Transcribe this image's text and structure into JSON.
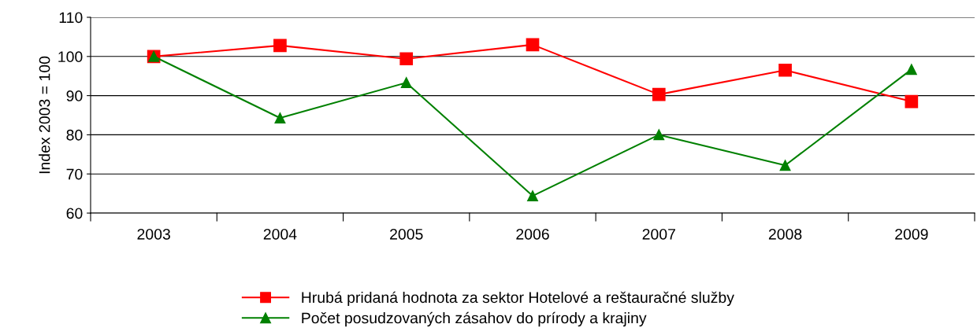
{
  "chart_data": {
    "type": "line",
    "ylabel": "Index 2003 = 100",
    "categories": [
      "2003",
      "2004",
      "2005",
      "2006",
      "2007",
      "2008",
      "2009"
    ],
    "series": [
      {
        "name": "Hrubá pridaná hodnota za sektor Hotelové a reštauračné služby",
        "color": "#ff0000",
        "marker": "square",
        "values": [
          100,
          102.8,
          99.4,
          103.0,
          90.3,
          96.5,
          88.5
        ]
      },
      {
        "name": "Počet posudzovaných zásahov do prírody a krajiny",
        "color": "#008000",
        "marker": "triangle",
        "values": [
          100,
          84.3,
          93.3,
          64.4,
          80.0,
          72.2,
          96.7
        ]
      }
    ],
    "ylim": [
      60,
      110
    ],
    "yticks": [
      60,
      70,
      80,
      90,
      100,
      110
    ],
    "grid": "y",
    "legend": "bottom",
    "line_style": "solid"
  }
}
